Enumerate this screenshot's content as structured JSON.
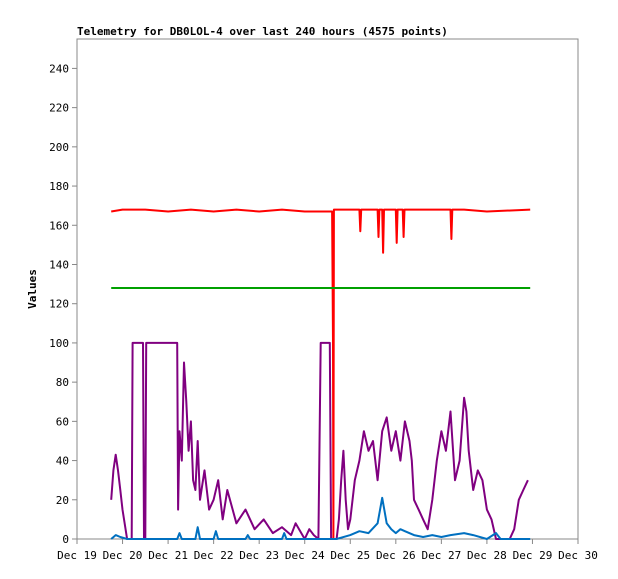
{
  "chart_data": {
    "type": "line",
    "title": "Telemetry for DB0LOL-4 over last 240 hours (4575 points)",
    "xlabel": "",
    "ylabel": "Values",
    "ylim": [
      0,
      255
    ],
    "y_ticks": [
      0,
      20,
      40,
      60,
      80,
      100,
      120,
      140,
      160,
      180,
      200,
      220,
      240
    ],
    "x_ticks": [
      "Dec 19",
      "Dec 20",
      "Dec 21",
      "Dec 22",
      "Dec 23",
      "Dec 24",
      "Dec 25",
      "Dec 26",
      "Dec 27",
      "Dec 28",
      "Dec 29",
      "Dec 30"
    ],
    "xlim": [
      0,
      11
    ],
    "grid": false,
    "series": [
      {
        "color": "#ff0000",
        "points": [
          [
            0.75,
            167
          ],
          [
            1.0,
            168
          ],
          [
            1.5,
            168
          ],
          [
            2.0,
            167
          ],
          [
            2.5,
            168
          ],
          [
            3.0,
            167
          ],
          [
            3.5,
            168
          ],
          [
            4.0,
            167
          ],
          [
            4.5,
            168
          ],
          [
            5.0,
            167
          ],
          [
            5.6,
            167
          ],
          [
            5.62,
            100
          ],
          [
            5.63,
            0
          ],
          [
            5.64,
            168
          ],
          [
            6.2,
            168
          ],
          [
            6.22,
            157
          ],
          [
            6.24,
            168
          ],
          [
            6.6,
            168
          ],
          [
            6.62,
            154
          ],
          [
            6.64,
            168
          ],
          [
            6.7,
            168
          ],
          [
            6.72,
            146
          ],
          [
            6.74,
            168
          ],
          [
            7.0,
            168
          ],
          [
            7.02,
            151
          ],
          [
            7.04,
            168
          ],
          [
            7.15,
            168
          ],
          [
            7.17,
            154
          ],
          [
            7.19,
            168
          ],
          [
            8.2,
            168
          ],
          [
            8.22,
            153
          ],
          [
            8.24,
            168
          ],
          [
            8.5,
            168
          ],
          [
            9.0,
            167
          ],
          [
            9.95,
            168
          ]
        ]
      },
      {
        "color": "#00a000",
        "points": [
          [
            0.75,
            128
          ],
          [
            9.95,
            128
          ]
        ]
      },
      {
        "color": "#800080",
        "points": [
          [
            0.75,
            20
          ],
          [
            0.8,
            35
          ],
          [
            0.85,
            43
          ],
          [
            0.9,
            35
          ],
          [
            0.95,
            25
          ],
          [
            1.0,
            15
          ],
          [
            1.1,
            0
          ],
          [
            1.2,
            0
          ],
          [
            1.22,
            100
          ],
          [
            1.45,
            100
          ],
          [
            1.47,
            0
          ],
          [
            1.5,
            0
          ],
          [
            1.52,
            100
          ],
          [
            2.2,
            100
          ],
          [
            2.22,
            15
          ],
          [
            2.25,
            55
          ],
          [
            2.3,
            40
          ],
          [
            2.35,
            90
          ],
          [
            2.4,
            70
          ],
          [
            2.45,
            45
          ],
          [
            2.5,
            60
          ],
          [
            2.55,
            30
          ],
          [
            2.6,
            25
          ],
          [
            2.65,
            50
          ],
          [
            2.7,
            20
          ],
          [
            2.8,
            35
          ],
          [
            2.9,
            15
          ],
          [
            3.0,
            20
          ],
          [
            3.1,
            30
          ],
          [
            3.2,
            10
          ],
          [
            3.3,
            25
          ],
          [
            3.5,
            8
          ],
          [
            3.7,
            15
          ],
          [
            3.9,
            5
          ],
          [
            4.1,
            10
          ],
          [
            4.3,
            3
          ],
          [
            4.5,
            6
          ],
          [
            4.7,
            2
          ],
          [
            4.8,
            8
          ],
          [
            5.0,
            0
          ],
          [
            5.1,
            5
          ],
          [
            5.2,
            2
          ],
          [
            5.3,
            0
          ],
          [
            5.35,
            100
          ],
          [
            5.55,
            100
          ],
          [
            5.58,
            0
          ],
          [
            5.7,
            0
          ],
          [
            5.75,
            10
          ],
          [
            5.8,
            30
          ],
          [
            5.85,
            45
          ],
          [
            5.9,
            20
          ],
          [
            5.95,
            5
          ],
          [
            6.0,
            10
          ],
          [
            6.1,
            30
          ],
          [
            6.2,
            40
          ],
          [
            6.3,
            55
          ],
          [
            6.4,
            45
          ],
          [
            6.5,
            50
          ],
          [
            6.6,
            30
          ],
          [
            6.7,
            55
          ],
          [
            6.8,
            62
          ],
          [
            6.9,
            45
          ],
          [
            7.0,
            55
          ],
          [
            7.1,
            40
          ],
          [
            7.2,
            60
          ],
          [
            7.3,
            50
          ],
          [
            7.35,
            40
          ],
          [
            7.4,
            20
          ],
          [
            7.5,
            15
          ],
          [
            7.6,
            10
          ],
          [
            7.7,
            5
          ],
          [
            7.8,
            20
          ],
          [
            7.9,
            40
          ],
          [
            8.0,
            55
          ],
          [
            8.1,
            45
          ],
          [
            8.2,
            65
          ],
          [
            8.3,
            30
          ],
          [
            8.4,
            40
          ],
          [
            8.5,
            72
          ],
          [
            8.55,
            65
          ],
          [
            8.6,
            45
          ],
          [
            8.7,
            25
          ],
          [
            8.8,
            35
          ],
          [
            8.9,
            30
          ],
          [
            9.0,
            15
          ],
          [
            9.1,
            10
          ],
          [
            9.2,
            0
          ],
          [
            9.5,
            0
          ],
          [
            9.6,
            5
          ],
          [
            9.7,
            20
          ],
          [
            9.8,
            25
          ],
          [
            9.9,
            30
          ]
        ]
      },
      {
        "color": "#0070c0",
        "points": [
          [
            0.75,
            0
          ],
          [
            0.85,
            2
          ],
          [
            0.95,
            1
          ],
          [
            1.1,
            0
          ],
          [
            2.2,
            0
          ],
          [
            2.25,
            3
          ],
          [
            2.3,
            0
          ],
          [
            2.6,
            0
          ],
          [
            2.65,
            6
          ],
          [
            2.7,
            0
          ],
          [
            3.0,
            0
          ],
          [
            3.05,
            4
          ],
          [
            3.1,
            0
          ],
          [
            3.7,
            0
          ],
          [
            3.75,
            2
          ],
          [
            3.8,
            0
          ],
          [
            4.5,
            0
          ],
          [
            4.55,
            3
          ],
          [
            4.6,
            0
          ],
          [
            5.7,
            0
          ],
          [
            6.0,
            2
          ],
          [
            6.2,
            4
          ],
          [
            6.4,
            3
          ],
          [
            6.6,
            8
          ],
          [
            6.7,
            21
          ],
          [
            6.8,
            8
          ],
          [
            6.9,
            5
          ],
          [
            7.0,
            3
          ],
          [
            7.1,
            5
          ],
          [
            7.2,
            4
          ],
          [
            7.4,
            2
          ],
          [
            7.6,
            1
          ],
          [
            7.8,
            2
          ],
          [
            8.0,
            1
          ],
          [
            8.2,
            2
          ],
          [
            8.5,
            3
          ],
          [
            8.7,
            2
          ],
          [
            9.0,
            0
          ],
          [
            9.2,
            3
          ],
          [
            9.3,
            0
          ],
          [
            9.95,
            0
          ]
        ]
      }
    ]
  }
}
